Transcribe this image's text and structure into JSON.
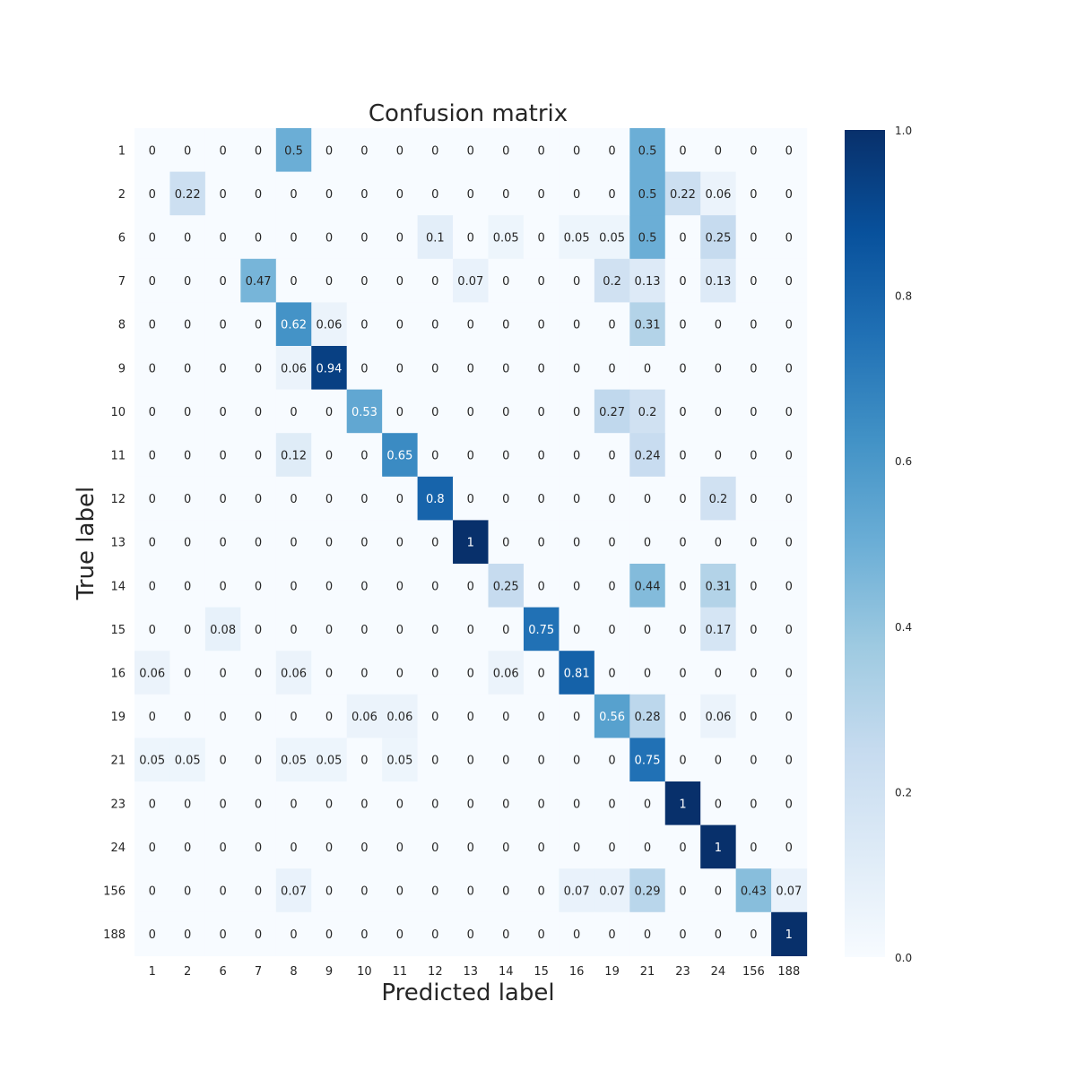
{
  "chart_data": {
    "type": "heatmap",
    "title": "Confusion matrix",
    "xlabel": "Predicted label",
    "ylabel": "True label",
    "row_labels": [
      "1",
      "2",
      "6",
      "7",
      "8",
      "9",
      "10",
      "11",
      "12",
      "13",
      "14",
      "15",
      "16",
      "19",
      "21",
      "23",
      "24",
      "156",
      "188"
    ],
    "col_labels": [
      "1",
      "2",
      "6",
      "7",
      "8",
      "9",
      "10",
      "11",
      "12",
      "13",
      "14",
      "15",
      "16",
      "19",
      "21",
      "23",
      "24",
      "156",
      "188"
    ],
    "values": [
      [
        "0",
        "0",
        "0",
        "0",
        "0.5",
        "0",
        "0",
        "0",
        "0",
        "0",
        "0",
        "0",
        "0",
        "0",
        "0.5",
        "0",
        "0",
        "0",
        "0"
      ],
      [
        "0",
        "0.22",
        "0",
        "0",
        "0",
        "0",
        "0",
        "0",
        "0",
        "0",
        "0",
        "0",
        "0",
        "0",
        "0.5",
        "0.22",
        "0.06",
        "0",
        "0"
      ],
      [
        "0",
        "0",
        "0",
        "0",
        "0",
        "0",
        "0",
        "0",
        "0.1",
        "0",
        "0.05",
        "0",
        "0.05",
        "0.05",
        "0.5",
        "0",
        "0.25",
        "0",
        "0"
      ],
      [
        "0",
        "0",
        "0",
        "0.47",
        "0",
        "0",
        "0",
        "0",
        "0",
        "0.07",
        "0",
        "0",
        "0",
        "0.2",
        "0.13",
        "0",
        "0.13",
        "0",
        "0"
      ],
      [
        "0",
        "0",
        "0",
        "0",
        "0.62",
        "0.06",
        "0",
        "0",
        "0",
        "0",
        "0",
        "0",
        "0",
        "0",
        "0.31",
        "0",
        "0",
        "0",
        "0"
      ],
      [
        "0",
        "0",
        "0",
        "0",
        "0.06",
        "0.94",
        "0",
        "0",
        "0",
        "0",
        "0",
        "0",
        "0",
        "0",
        "0",
        "0",
        "0",
        "0",
        "0"
      ],
      [
        "0",
        "0",
        "0",
        "0",
        "0",
        "0",
        "0.53",
        "0",
        "0",
        "0",
        "0",
        "0",
        "0",
        "0.27",
        "0.2",
        "0",
        "0",
        "0",
        "0"
      ],
      [
        "0",
        "0",
        "0",
        "0",
        "0.12",
        "0",
        "0",
        "0.65",
        "0",
        "0",
        "0",
        "0",
        "0",
        "0",
        "0.24",
        "0",
        "0",
        "0",
        "0"
      ],
      [
        "0",
        "0",
        "0",
        "0",
        "0",
        "0",
        "0",
        "0",
        "0.8",
        "0",
        "0",
        "0",
        "0",
        "0",
        "0",
        "0",
        "0.2",
        "0",
        "0"
      ],
      [
        "0",
        "0",
        "0",
        "0",
        "0",
        "0",
        "0",
        "0",
        "0",
        "1",
        "0",
        "0",
        "0",
        "0",
        "0",
        "0",
        "0",
        "0",
        "0"
      ],
      [
        "0",
        "0",
        "0",
        "0",
        "0",
        "0",
        "0",
        "0",
        "0",
        "0",
        "0.25",
        "0",
        "0",
        "0",
        "0.44",
        "0",
        "0.31",
        "0",
        "0"
      ],
      [
        "0",
        "0",
        "0.08",
        "0",
        "0",
        "0",
        "0",
        "0",
        "0",
        "0",
        "0",
        "0.75",
        "0",
        "0",
        "0",
        "0",
        "0.17",
        "0",
        "0"
      ],
      [
        "0.06",
        "0",
        "0",
        "0",
        "0.06",
        "0",
        "0",
        "0",
        "0",
        "0",
        "0.06",
        "0",
        "0.81",
        "0",
        "0",
        "0",
        "0",
        "0",
        "0"
      ],
      [
        "0",
        "0",
        "0",
        "0",
        "0",
        "0",
        "0.06",
        "0.06",
        "0",
        "0",
        "0",
        "0",
        "0",
        "0.56",
        "0.28",
        "0",
        "0.06",
        "0",
        "0"
      ],
      [
        "0.05",
        "0.05",
        "0",
        "0",
        "0.05",
        "0.05",
        "0",
        "0.05",
        "0",
        "0",
        "0",
        "0",
        "0",
        "0",
        "0.75",
        "0",
        "0",
        "0",
        "0"
      ],
      [
        "0",
        "0",
        "0",
        "0",
        "0",
        "0",
        "0",
        "0",
        "0",
        "0",
        "0",
        "0",
        "0",
        "0",
        "0",
        "1",
        "0",
        "0",
        "0"
      ],
      [
        "0",
        "0",
        "0",
        "0",
        "0",
        "0",
        "0",
        "0",
        "0",
        "0",
        "0",
        "0",
        "0",
        "0",
        "0",
        "0",
        "1",
        "0",
        "0"
      ],
      [
        "0",
        "0",
        "0",
        "0",
        "0.07",
        "0",
        "0",
        "0",
        "0",
        "0",
        "0",
        "0",
        "0.07",
        "0.07",
        "0.29",
        "0",
        "0",
        "0.43",
        "0.07"
      ],
      [
        "0",
        "0",
        "0",
        "0",
        "0",
        "0",
        "0",
        "0",
        "0",
        "0",
        "0",
        "0",
        "0",
        "0",
        "0",
        "0",
        "0",
        "0",
        "1"
      ]
    ],
    "colorbar": {
      "range": [
        0.0,
        1.0
      ],
      "ticks": [
        "0.0",
        "0.2",
        "0.4",
        "0.6",
        "0.8",
        "1.0"
      ],
      "colormap": "Blues"
    },
    "grid": false
  }
}
